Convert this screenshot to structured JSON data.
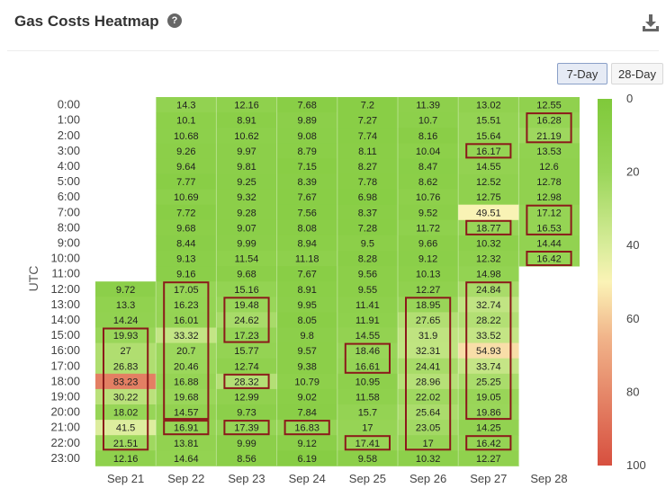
{
  "header": {
    "title": "Gas Costs Heatmap",
    "help_icon": "question-circle-icon",
    "download_icon": "download-icon"
  },
  "range_buttons": [
    {
      "label": "7-Day",
      "active": true
    },
    {
      "label": "28-Day",
      "active": false
    }
  ],
  "colors": {
    "scale_min": "#7fc93a",
    "scale_mid": "#fbf3b6",
    "scale_max": "#d74f3f",
    "highlight_border": "#8b1a1a"
  },
  "chart_data": {
    "type": "heatmap",
    "title": "Gas Costs Heatmap",
    "xlabel": "",
    "ylabel": "UTC",
    "x": [
      "Sep 21",
      "Sep 22",
      "Sep 23",
      "Sep 24",
      "Sep 25",
      "Sep 26",
      "Sep 27",
      "Sep 28"
    ],
    "y": [
      "0:00",
      "1:00",
      "2:00",
      "3:00",
      "4:00",
      "5:00",
      "6:00",
      "7:00",
      "8:00",
      "9:00",
      "10:00",
      "11:00",
      "12:00",
      "13:00",
      "14:00",
      "15:00",
      "16:00",
      "17:00",
      "18:00",
      "19:00",
      "20:00",
      "21:00",
      "22:00",
      "23:00"
    ],
    "values": [
      [
        null,
        14.3,
        12.16,
        7.68,
        7.2,
        11.39,
        13.02,
        12.55
      ],
      [
        null,
        10.1,
        8.91,
        9.89,
        7.27,
        10.7,
        15.51,
        16.28
      ],
      [
        null,
        10.68,
        10.62,
        9.08,
        7.74,
        8.16,
        15.64,
        21.19
      ],
      [
        null,
        9.26,
        9.97,
        8.79,
        8.11,
        10.04,
        16.17,
        13.53
      ],
      [
        null,
        9.64,
        9.81,
        7.15,
        8.27,
        8.47,
        14.55,
        12.6
      ],
      [
        null,
        7.77,
        9.25,
        8.39,
        7.78,
        8.62,
        12.52,
        12.78
      ],
      [
        null,
        10.69,
        9.32,
        7.67,
        6.98,
        10.76,
        12.75,
        12.98
      ],
      [
        null,
        7.72,
        9.28,
        7.56,
        8.37,
        9.52,
        49.51,
        17.12
      ],
      [
        null,
        9.68,
        9.07,
        8.08,
        7.28,
        11.72,
        18.77,
        16.53
      ],
      [
        null,
        8.44,
        9.99,
        8.94,
        9.5,
        9.66,
        10.32,
        14.44
      ],
      [
        null,
        9.13,
        11.54,
        11.18,
        8.28,
        9.12,
        12.32,
        16.42
      ],
      [
        null,
        9.16,
        9.68,
        7.67,
        9.56,
        10.13,
        14.98,
        null
      ],
      [
        9.72,
        17.05,
        15.16,
        8.91,
        9.55,
        12.27,
        24.84,
        null
      ],
      [
        13.3,
        16.23,
        19.48,
        9.95,
        11.41,
        18.95,
        32.74,
        null
      ],
      [
        14.24,
        16.01,
        24.62,
        8.05,
        11.91,
        27.65,
        28.22,
        null
      ],
      [
        19.93,
        33.32,
        17.23,
        9.8,
        14.55,
        31.9,
        33.52,
        null
      ],
      [
        27,
        20.7,
        15.77,
        9.57,
        18.46,
        32.31,
        54.93,
        null
      ],
      [
        26.83,
        20.46,
        12.74,
        9.38,
        16.61,
        24.41,
        33.74,
        null
      ],
      [
        83.23,
        16.88,
        28.32,
        10.79,
        10.95,
        28.96,
        25.25,
        null
      ],
      [
        30.22,
        19.68,
        12.99,
        9.02,
        11.58,
        22.02,
        19.05,
        null
      ],
      [
        18.02,
        14.57,
        9.73,
        7.84,
        15.7,
        25.64,
        19.86,
        null
      ],
      [
        41.5,
        16.91,
        17.39,
        16.83,
        17,
        23.05,
        14.25,
        null
      ],
      [
        21.51,
        13.81,
        9.99,
        9.12,
        17.41,
        17,
        16.42,
        null
      ],
      [
        12.16,
        14.64,
        8.56,
        6.19,
        9.58,
        10.32,
        12.27,
        null
      ]
    ],
    "labels": [
      [
        null,
        "14.3",
        "12.16",
        "7.68",
        "7.2",
        "11.39",
        "13.02",
        "12.55"
      ],
      [
        null,
        "10.1",
        "8.91",
        "9.89",
        "7.27",
        "10.7",
        "15.51",
        "16.28"
      ],
      [
        null,
        "10.68",
        "10.62",
        "9.08",
        "7.74",
        "8.16",
        "15.64",
        "21.19"
      ],
      [
        null,
        "9.26",
        "9.97",
        "8.79",
        "8.11",
        "10.04",
        "16.17",
        "13.53"
      ],
      [
        null,
        "9.64",
        "9.81",
        "7.15",
        "8.27",
        "8.47",
        "14.55",
        "12.6"
      ],
      [
        null,
        "7.77",
        "9.25",
        "8.39",
        "7.78",
        "8.62",
        "12.52",
        "12.78"
      ],
      [
        null,
        "10.69",
        "9.32",
        "7.67",
        "6.98",
        "10.76",
        "12.75",
        "12.98"
      ],
      [
        null,
        "7.72",
        "9.28",
        "7.56",
        "8.37",
        "9.52",
        "49.51",
        "17.12"
      ],
      [
        null,
        "9.68",
        "9.07",
        "8.08",
        "7.28",
        "11.72",
        "18.77",
        "16.53"
      ],
      [
        null,
        "8.44",
        "9.99",
        "8.94",
        "9.5",
        "9.66",
        "10.32",
        "14.44"
      ],
      [
        null,
        "9.13",
        "11.54",
        "11.18",
        "8.28",
        "9.12",
        "12.32",
        "16.42"
      ],
      [
        null,
        "9.16",
        "9.68",
        "7.67",
        "9.56",
        "10.13",
        "14.98",
        null
      ],
      [
        "9.72",
        "17.05",
        "15.16",
        "8.91",
        "9.55",
        "12.27",
        "24.84",
        null
      ],
      [
        "13.3",
        "16.23",
        "19.48",
        "9.95",
        "11.41",
        "18.95",
        "32.74",
        null
      ],
      [
        "14.24",
        "16.01",
        "24.62",
        "8.05",
        "11.91",
        "27.65",
        "28.22",
        null
      ],
      [
        "19.93",
        "33.32",
        "17.23",
        "9.8",
        "14.55",
        "31.9",
        "33.52",
        null
      ],
      [
        "27",
        "20.7",
        "15.77",
        "9.57",
        "18.46",
        "32.31",
        "54.93",
        null
      ],
      [
        "26.83",
        "20.46",
        "12.74",
        "9.38",
        "16.61",
        "24.41",
        "33.74",
        null
      ],
      [
        "83.23",
        "16.88",
        "28.32",
        "10.79",
        "10.95",
        "28.96",
        "25.25",
        null
      ],
      [
        "30.22",
        "19.68",
        "12.99",
        "9.02",
        "11.58",
        "22.02",
        "19.05",
        null
      ],
      [
        "18.02",
        "14.57",
        "9.73",
        "7.84",
        "15.7",
        "25.64",
        "19.86",
        null
      ],
      [
        "41.5",
        "16.91",
        "17.39",
        "16.83",
        "17",
        "23.05",
        "14.25",
        null
      ],
      [
        "21.51",
        "13.81",
        "9.99",
        "9.12",
        "17.41",
        "17",
        "16.42",
        null
      ],
      [
        "12.16",
        "14.64",
        "8.56",
        "6.19",
        "9.58",
        "10.32",
        "12.27",
        null
      ]
    ],
    "highlights": [
      {
        "col": 0,
        "row_start": 15,
        "row_end": 22
      },
      {
        "col": 1,
        "row_start": 12,
        "row_end": 20
      },
      {
        "col": 1,
        "row_start": 21,
        "row_end": 21
      },
      {
        "col": 2,
        "row_start": 13,
        "row_end": 15
      },
      {
        "col": 2,
        "row_start": 18,
        "row_end": 18
      },
      {
        "col": 2,
        "row_start": 21,
        "row_end": 21
      },
      {
        "col": 3,
        "row_start": 21,
        "row_end": 21
      },
      {
        "col": 4,
        "row_start": 16,
        "row_end": 17
      },
      {
        "col": 4,
        "row_start": 22,
        "row_end": 22
      },
      {
        "col": 5,
        "row_start": 13,
        "row_end": 22
      },
      {
        "col": 6,
        "row_start": 3,
        "row_end": 3
      },
      {
        "col": 6,
        "row_start": 8,
        "row_end": 8
      },
      {
        "col": 6,
        "row_start": 12,
        "row_end": 20
      },
      {
        "col": 6,
        "row_start": 22,
        "row_end": 22
      },
      {
        "col": 7,
        "row_start": 1,
        "row_end": 2
      },
      {
        "col": 7,
        "row_start": 7,
        "row_end": 8
      },
      {
        "col": 7,
        "row_start": 10,
        "row_end": 10
      }
    ],
    "color_scale": {
      "min": 0,
      "max": 100,
      "ticks": [
        "0",
        "20",
        "40",
        "60",
        "80",
        "100"
      ]
    }
  }
}
